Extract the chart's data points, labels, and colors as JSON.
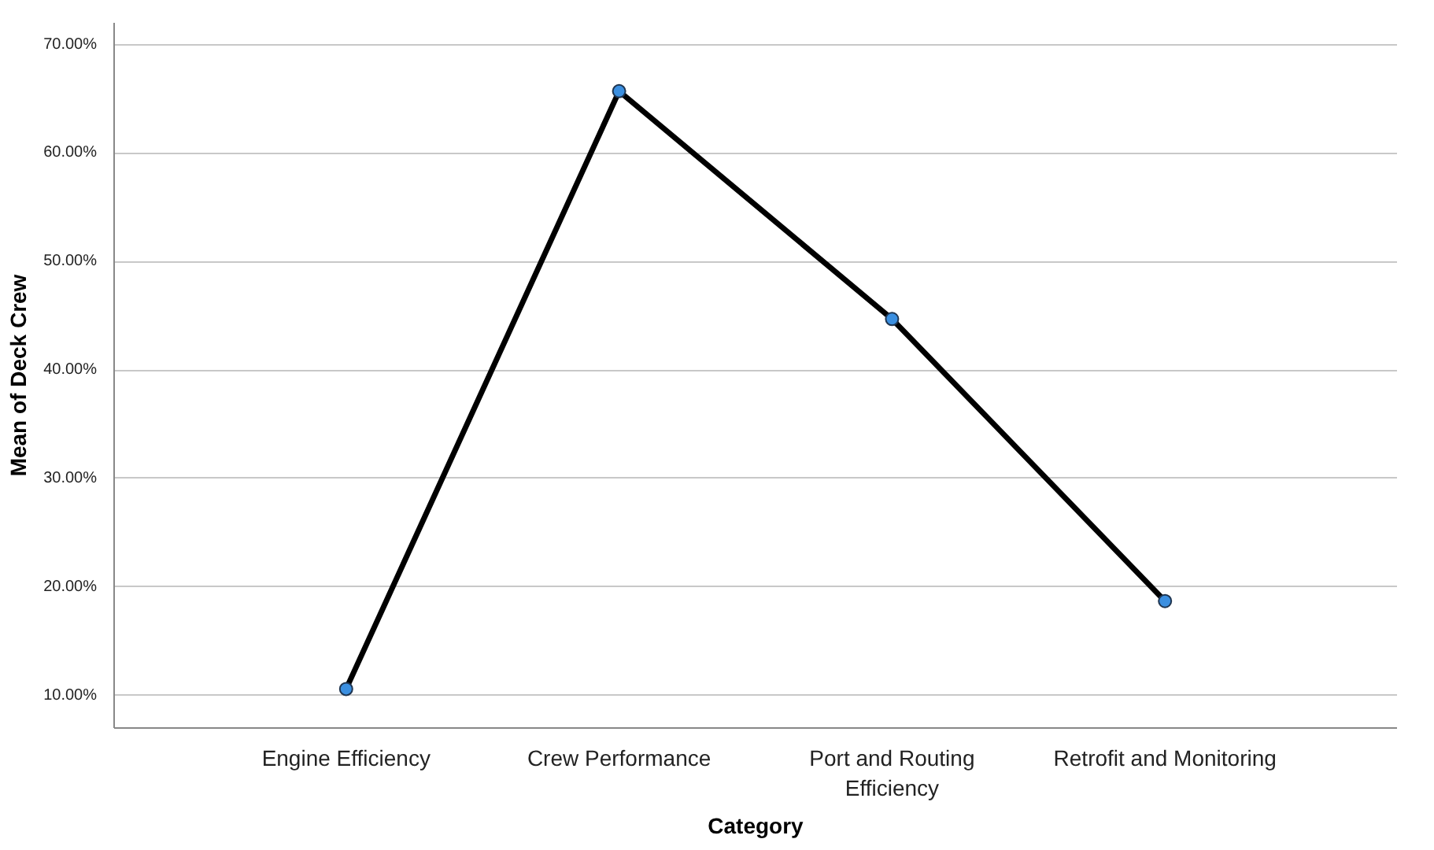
{
  "chart_data": {
    "type": "line",
    "xlabel": "Category",
    "ylabel": "Mean of Deck Crew",
    "categories": [
      "Engine Efficiency",
      "Crew Performance",
      "Port and Routing Efficiency",
      "Retrofit and Monitoring"
    ],
    "series": [
      {
        "color": "#000000",
        "values": [
          10.6,
          65.7,
          44.7,
          18.7
        ]
      }
    ],
    "ylim": [
      7,
      72
    ],
    "yticks": [
      {
        "value": 10,
        "label": "10.00%"
      },
      {
        "value": 20,
        "label": "20.00%"
      },
      {
        "value": 30,
        "label": "30.00%"
      },
      {
        "value": 40,
        "label": "40.00%"
      },
      {
        "value": 50,
        "label": "50.00%"
      },
      {
        "value": 60,
        "label": "60.00%"
      },
      {
        "value": 70,
        "label": "70.00%"
      }
    ],
    "grid": "y",
    "marker": "circle",
    "line_style": "solid"
  }
}
